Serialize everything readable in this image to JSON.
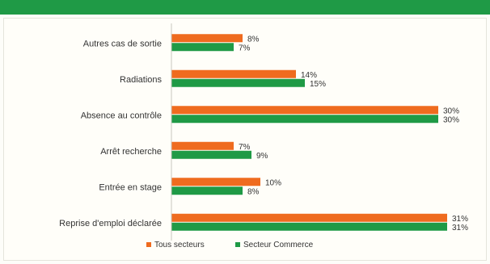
{
  "chart_data": {
    "type": "bar",
    "orientation": "horizontal",
    "title": "",
    "xlabel": "",
    "ylabel": "",
    "xlim": [
      0,
      31
    ],
    "grid": false,
    "legend_placement": "bottom-center",
    "categories": [
      "Autres cas de sortie",
      "Radiations",
      "Absence au contrôle",
      "Arrêt recherche",
      "Entrée en stage",
      "Reprise d'emploi déclarée"
    ],
    "series": [
      {
        "name": "Tous secteurs",
        "color": "#ef6b1f",
        "values": [
          8,
          14,
          30,
          7,
          10,
          31
        ],
        "labels": [
          "8%",
          "14%",
          "30%",
          "7%",
          "10%",
          "31%"
        ]
      },
      {
        "name": "Secteur Commerce",
        "color": "#1f9a46",
        "values": [
          7,
          15,
          30,
          9,
          8,
          31
        ],
        "labels": [
          "7%",
          "15%",
          "30%",
          "9%",
          "8%",
          "31%"
        ]
      }
    ]
  },
  "colors": {
    "header_bar": "#1f9a46",
    "axis": "#c8c8c0",
    "text": "#333333"
  }
}
